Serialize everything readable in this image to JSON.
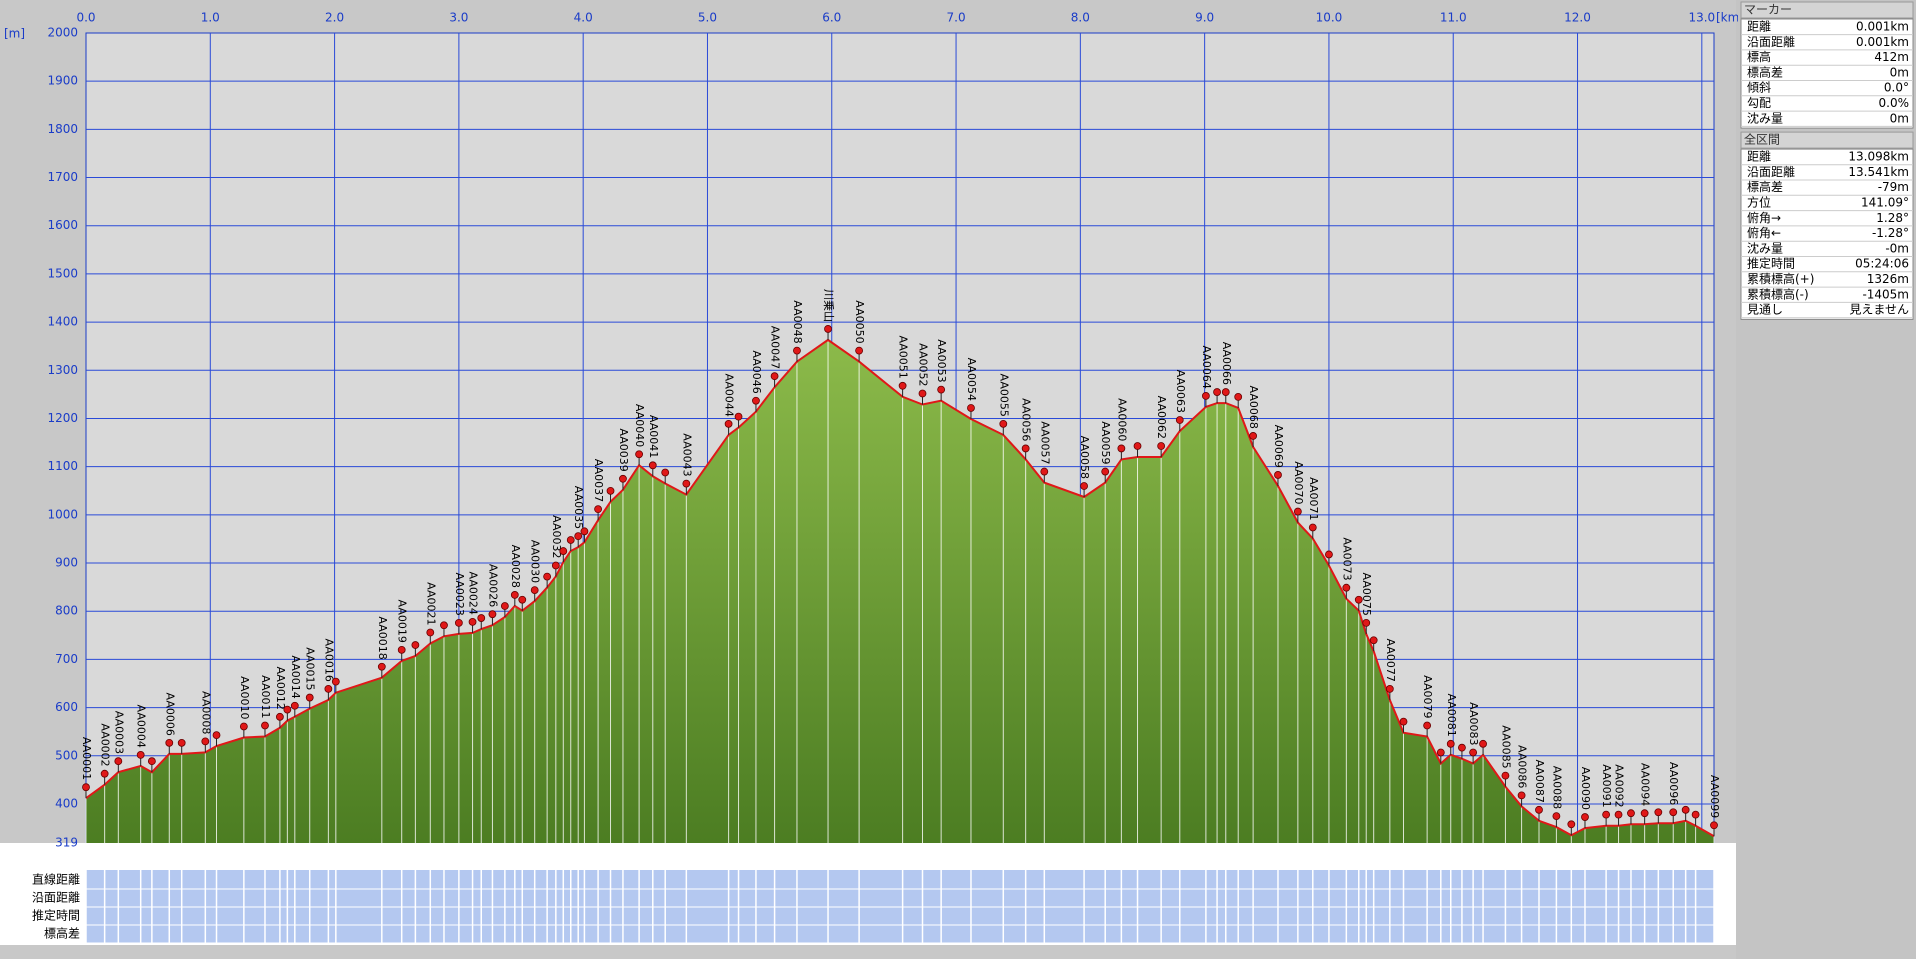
{
  "chart_data": {
    "type": "line",
    "x_label": "[km]",
    "y_label": "[m]",
    "xlim": [
      0,
      13.098
    ],
    "ylim": [
      319,
      2000
    ],
    "xticks": [
      {
        "value": 0,
        "label": "0.0"
      },
      {
        "value": 1,
        "label": "1.0"
      },
      {
        "value": 2,
        "label": "2.0"
      },
      {
        "value": 3,
        "label": "3.0"
      },
      {
        "value": 4,
        "label": "4.0"
      },
      {
        "value": 5,
        "label": "5.0"
      },
      {
        "value": 6,
        "label": "6.0"
      },
      {
        "value": 7,
        "label": "7.0"
      },
      {
        "value": 8,
        "label": "8.0"
      },
      {
        "value": 9,
        "label": "9.0"
      },
      {
        "value": 10,
        "label": "10.0"
      },
      {
        "value": 11,
        "label": "11.0"
      },
      {
        "value": 12,
        "label": "12.0"
      },
      {
        "value": 13,
        "label": "13.0"
      }
    ],
    "yticks": [
      319,
      400,
      500,
      600,
      700,
      800,
      900,
      1000,
      1100,
      1200,
      1300,
      1400,
      1500,
      1600,
      1700,
      1800,
      1900,
      2000
    ],
    "grid": true,
    "x": [
      0,
      0.15,
      0.26,
      0.44,
      0.53,
      0.67,
      0.77,
      0.96,
      1.05,
      1.27,
      1.44,
      1.56,
      1.62,
      1.68,
      1.8,
      1.95,
      2.01,
      2.38,
      2.54,
      2.65,
      2.77,
      2.88,
      3.0,
      3.11,
      3.18,
      3.27,
      3.37,
      3.45,
      3.51,
      3.61,
      3.71,
      3.78,
      3.84,
      3.9,
      3.96,
      4.01,
      4.12,
      4.22,
      4.32,
      4.45,
      4.56,
      4.66,
      4.83,
      5.17,
      5.25,
      5.39,
      5.54,
      5.72,
      5.97,
      6.22,
      6.57,
      6.73,
      6.88,
      7.12,
      7.38,
      7.56,
      7.71,
      8.03,
      8.2,
      8.33,
      8.46,
      8.65,
      8.8,
      9.01,
      9.1,
      9.17,
      9.27,
      9.39,
      9.59,
      9.75,
      9.87,
      10.0,
      10.14,
      10.24,
      10.3,
      10.36,
      10.49,
      10.6,
      10.79,
      10.9,
      10.98,
      11.07,
      11.16,
      11.24,
      11.42,
      11.55,
      11.69,
      11.83,
      11.95,
      12.06,
      12.23,
      12.33,
      12.43,
      12.54,
      12.65,
      12.77,
      12.87,
      12.95,
      13.098
    ],
    "series": [
      {
        "color": "#e01818",
        "values": [
          412,
          440,
          466,
          479,
          466,
          504,
          504,
          507,
          520,
          538,
          540,
          558,
          573,
          581,
          598,
          616,
          631,
          662,
          697,
          707,
          733,
          748,
          753,
          755,
          763,
          771,
          788,
          811,
          801,
          821,
          849,
          872,
          902,
          925,
          933,
          943,
          989,
          1027,
          1052,
          1103,
          1080,
          1065,
          1042,
          1166,
          1181,
          1214,
          1265,
          1318,
          1363,
          1318,
          1245,
          1229,
          1237,
          1199,
          1166,
          1115,
          1067,
          1037,
          1067,
          1115,
          1120,
          1120,
          1174,
          1224,
          1232,
          1232,
          1222,
          1141,
          1060,
          984,
          951,
          895,
          826,
          801,
          753,
          717,
          616,
          548,
          540,
          484,
          502,
          494,
          484,
          502,
          436,
          395,
          365,
          352,
          335,
          350,
          355,
          355,
          358,
          358,
          360,
          360,
          365,
          355,
          333
        ]
      }
    ],
    "marker_labels": [
      "AA0001",
      "AA0002",
      "AA0003",
      "AA0004",
      null,
      "AA0006",
      null,
      "AA0008",
      null,
      "AA0010",
      "AA0011",
      "AA0012",
      null,
      "AA0014",
      "AA0015",
      "AA0016",
      null,
      "AA0018",
      "AA0019",
      null,
      "AA0021",
      null,
      "AA0023",
      "AA0024",
      null,
      "AA0026",
      null,
      "AA0028",
      null,
      "AA0030",
      null,
      "AA0032",
      null,
      null,
      "AA0035",
      null,
      "AA0037",
      null,
      "AA0039",
      "AA0040",
      "AA0041",
      null,
      "AA0043",
      "AA0044",
      null,
      "AA0046",
      "AA0047",
      "AA0048",
      "川乗山",
      "AA0050",
      "AA0051",
      "AA0052",
      "AA0053",
      "AA0054",
      "AA0055",
      "AA0056",
      "AA0057",
      "AA0058",
      "AA0059",
      "AA0060",
      null,
      "AA0062",
      "AA0063",
      "AA0064",
      null,
      "AA0066",
      null,
      "AA0068",
      "AA0069",
      "AA0070",
      "AA0071",
      null,
      "AA0073",
      null,
      "AA0075",
      null,
      "AA0077",
      null,
      "AA0079",
      null,
      "AA0081",
      null,
      "AA0083",
      null,
      "AA0085",
      "AA0086",
      "AA0087",
      "AA0088",
      null,
      "AA0090",
      "AA0091",
      "AA0092",
      null,
      "AA0094",
      null,
      "AA0096",
      null,
      null,
      "AA0099"
    ]
  },
  "table": {
    "row_labels": [
      "直線距離",
      "沿面距離",
      "推定時間",
      "標高差"
    ]
  },
  "panel": {
    "marker": {
      "title": "マーカー",
      "rows": [
        [
          "距離",
          "0.001km"
        ],
        [
          "沿面距離",
          "0.001km"
        ],
        [
          "標高",
          "412m"
        ],
        [
          "標高差",
          "0m"
        ],
        [
          "傾斜",
          "0.0°"
        ],
        [
          "勾配",
          "0.0%"
        ],
        [
          "沈み量",
          "0m"
        ]
      ]
    },
    "total": {
      "title": "全区間",
      "rows": [
        [
          "距離",
          "13.098km"
        ],
        [
          "沿面距離",
          "13.541km"
        ],
        [
          "標高差",
          "-79m"
        ],
        [
          "方位",
          "141.09°"
        ],
        [
          "俯角→",
          "1.28°"
        ],
        [
          "俯角←",
          "-1.28°"
        ],
        [
          "沈み量",
          "-0m"
        ],
        [
          "推定時間",
          "05:24:06"
        ],
        [
          "累積標高(+)",
          "1326m"
        ],
        [
          "累積標高(-)",
          "-1405m"
        ],
        [
          "見通し",
          "見えません"
        ]
      ]
    }
  }
}
